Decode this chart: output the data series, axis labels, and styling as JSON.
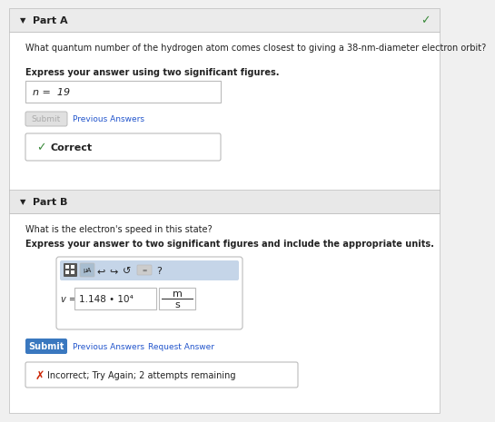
{
  "bg_color": "#f0f0f0",
  "white": "#ffffff",
  "part_a_header": "Part A",
  "part_b_header": "Part B",
  "question_a": "What quantum number of the hydrogen atom comes closest to giving a 38-nm-diameter electron orbit?",
  "bold_a": "Express your answer using two significant figures.",
  "answer_a": "n =  19",
  "question_b": "What is the electron's speed in this state?",
  "bold_b": "Express your answer to two significant figures and include the appropriate units.",
  "answer_b_val": "1.148 • 10⁴",
  "answer_b_units_top": "m",
  "answer_b_units_bot": "s",
  "submit_text": "Submit",
  "prev_answers": "Previous Answers",
  "request_answer": "Request Answer",
  "incorrect_text": "Incorrect; Try Again; 2 attempts remaining",
  "checkmark_color": "#3a8a3a",
  "cross_color": "#cc2200",
  "submit_bg": "#3a78bf",
  "link_color": "#2255cc",
  "border_color": "#bbbbbb",
  "toolbar_bg": "#c5d5e8",
  "header_bg": "#ebebeb",
  "content_bg": "#ffffff",
  "partb_sep_bg": "#e8e8e8",
  "text_color": "#222222",
  "gray_text": "#aaaaaa",
  "gray_btn_bg": "#e0e0e0",
  "gray_btn_border": "#bbbbbb",
  "icon_dark": "#555555"
}
